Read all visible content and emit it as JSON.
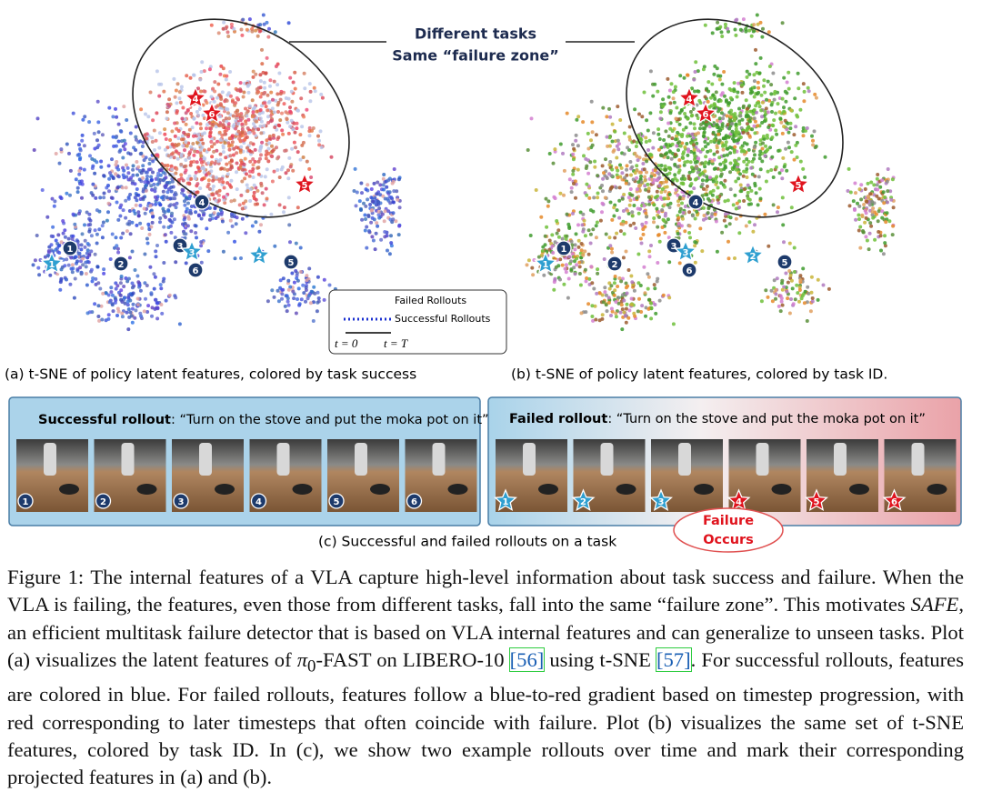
{
  "annotation": {
    "line1": "Different tasks",
    "line2": "Same “failure zone”"
  },
  "markers": [
    "1",
    "2",
    "3",
    "4",
    "5",
    "6"
  ],
  "legend": {
    "failed": "Failed Rollouts",
    "successful": "Successful Rollouts",
    "t_start": "t = 0",
    "t_end": "t = T"
  },
  "captions": {
    "a": "(a) t-SNE of policy latent features, colored by task success",
    "b": "(b) t-SNE of policy latent features, colored by task ID.",
    "c": "(c) Successful and failed rollouts on a task"
  },
  "rollouts": {
    "successful": {
      "label": "Successful rollout",
      "instruction": ": “Turn on the stove and put the moka pot on it”"
    },
    "failed": {
      "label": "Failed rollout",
      "instruction": ": “Turn on the stove and put the moka pot on it”"
    },
    "failure_note": {
      "line1": "Failure",
      "line2": "Occurs"
    }
  },
  "figure_caption": {
    "parts": [
      "Figure 1: The internal features of a VLA capture high-level information about task success and failure. When the VLA is failing, the features, even those from different tasks, fall into the same “failure zone”. This motivates ",
      "SAFE",
      ", an efficient multitask failure detector that is based on VLA internal features and can generalize to unseen tasks. Plot (a) visualizes the latent features of ",
      "π",
      "0",
      "-FAST on LIBERO-10 ",
      "[56]",
      " using t-SNE ",
      "[57]",
      ". For successful rollouts, features are colored in blue. For failed rollouts, features follow a blue-to-red gradient based on timestep progression, with red corresponding to later timesteps that often coincide with failure. Plot (b) visualizes the same set of t-SNE features, colored by task ID. In (c), we show two example rollouts over time and mark their corresponding projected features in (a) and (b)."
    ]
  }
}
